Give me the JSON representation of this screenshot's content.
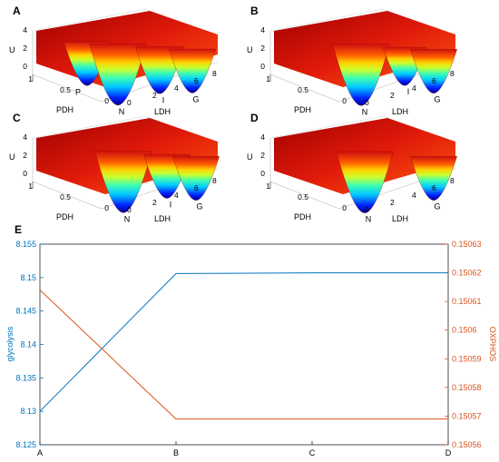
{
  "figure": {
    "panel_labels": [
      "A",
      "B",
      "C",
      "D",
      "E"
    ]
  },
  "surface_panels": [
    {
      "label": "A",
      "zlabel": "U",
      "xlabel": "LDH",
      "ylabel": "PDH",
      "z_ticks": [
        "0",
        "2",
        "4"
      ],
      "y_ticks": [
        "0",
        "0.5",
        "1"
      ],
      "x_ticks": [
        "0",
        "2",
        "4",
        "6",
        "8"
      ],
      "wells": [
        "P",
        "N",
        "I",
        "G"
      ]
    },
    {
      "label": "B",
      "zlabel": "U",
      "xlabel": "LDH",
      "ylabel": "PDH",
      "z_ticks": [
        "0",
        "2",
        "4"
      ],
      "y_ticks": [
        "0",
        "0.5",
        "1"
      ],
      "x_ticks": [
        "0",
        "2",
        "4",
        "6",
        "8"
      ],
      "wells": [
        "N",
        "I",
        "G"
      ]
    },
    {
      "label": "C",
      "zlabel": "U",
      "xlabel": "LDH",
      "ylabel": "PDH",
      "z_ticks": [
        "0",
        "2",
        "4"
      ],
      "y_ticks": [
        "0",
        "0.5",
        "1"
      ],
      "x_ticks": [
        "0",
        "2",
        "4",
        "6",
        "8"
      ],
      "wells": [
        "N",
        "I",
        "G"
      ]
    },
    {
      "label": "D",
      "zlabel": "U",
      "xlabel": "LDH",
      "ylabel": "PDH",
      "z_ticks": [
        "0",
        "2",
        "4"
      ],
      "y_ticks": [
        "0",
        "0.5",
        "1"
      ],
      "x_ticks": [
        "0",
        "2",
        "4",
        "6",
        "8"
      ],
      "wells": [
        "N",
        "G"
      ]
    }
  ],
  "chart_data": [
    {
      "type": "surface",
      "panel": "A",
      "axes": {
        "x": "LDH",
        "y": "PDH",
        "z": "U"
      },
      "xlim": [
        0,
        8
      ],
      "ylim": [
        0,
        1
      ],
      "zlim": [
        0,
        4
      ],
      "wells": [
        "P",
        "N",
        "I",
        "G"
      ]
    },
    {
      "type": "surface",
      "panel": "B",
      "axes": {
        "x": "LDH",
        "y": "PDH",
        "z": "U"
      },
      "xlim": [
        0,
        8
      ],
      "ylim": [
        0,
        1
      ],
      "zlim": [
        0,
        4
      ],
      "wells": [
        "N",
        "I",
        "G"
      ]
    },
    {
      "type": "surface",
      "panel": "C",
      "axes": {
        "x": "LDH",
        "y": "PDH",
        "z": "U"
      },
      "xlim": [
        0,
        8
      ],
      "ylim": [
        0,
        1
      ],
      "zlim": [
        0,
        4
      ],
      "wells": [
        "N",
        "I",
        "G"
      ]
    },
    {
      "type": "surface",
      "panel": "D",
      "axes": {
        "x": "LDH",
        "y": "PDH",
        "z": "U"
      },
      "xlim": [
        0,
        8
      ],
      "ylim": [
        0,
        1
      ],
      "zlim": [
        0,
        4
      ],
      "wells": [
        "N",
        "G"
      ]
    },
    {
      "type": "line",
      "panel": "E",
      "categories": [
        "A",
        "B",
        "C",
        "D"
      ],
      "series": [
        {
          "name": "glycolysis",
          "axis": "left",
          "color": "#0072BD",
          "values": [
            8.13,
            8.1506,
            8.1507,
            8.1507
          ]
        },
        {
          "name": "OXPHOS",
          "axis": "right",
          "color": "#D95319",
          "values": [
            0.150614,
            0.150569,
            0.150569,
            0.150569
          ]
        }
      ],
      "ylabel_left": "glycolysis",
      "ylabel_right": "OXPHOS",
      "ylim_left": [
        8.125,
        8.155
      ],
      "ylim_right": [
        0.15056,
        0.15063
      ],
      "yticks_left": [
        "8.125",
        "8.13",
        "8.135",
        "8.14",
        "8.145",
        "8.15",
        "8.155"
      ],
      "yticks_right": [
        "0.15056",
        "0.15057",
        "0.15058",
        "0.15059",
        "0.1506",
        "0.15061",
        "0.15062",
        "0.15063"
      ],
      "grid": false
    }
  ]
}
